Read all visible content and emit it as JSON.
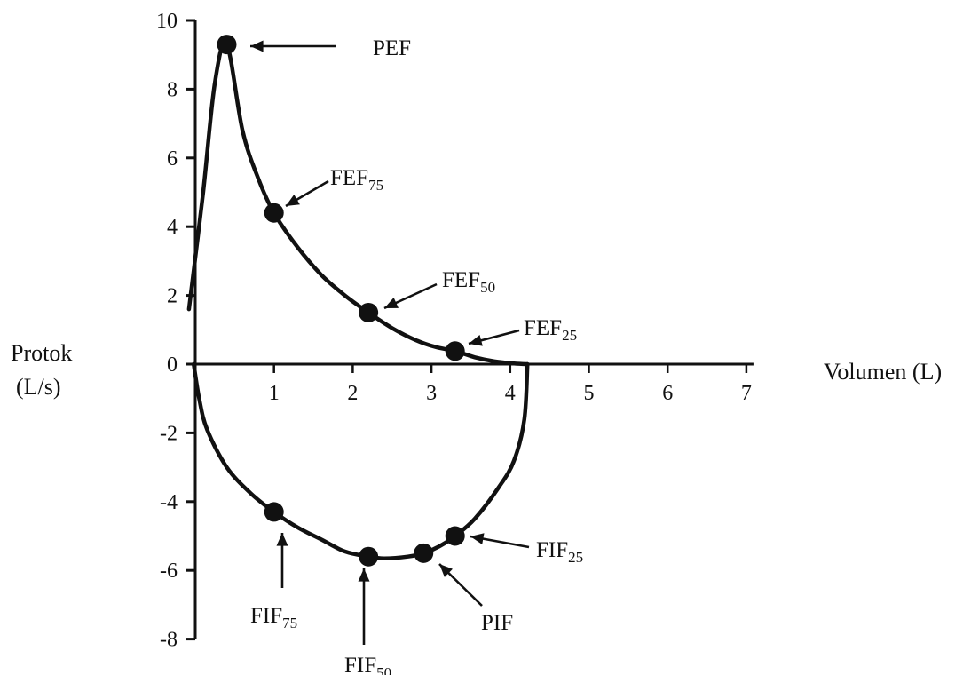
{
  "chart_data": {
    "type": "line",
    "title": "",
    "xlabel": "Volumen (L)",
    "ylabel": [
      "Protok",
      "(L/s)"
    ],
    "xlim": [
      0,
      7
    ],
    "ylim": [
      -8,
      10
    ],
    "x_ticks": [
      1,
      2,
      3,
      4,
      5,
      6,
      7
    ],
    "y_ticks": [
      10,
      8,
      6,
      4,
      2,
      0,
      -2,
      -4,
      -6,
      -8
    ],
    "grid": false,
    "line_color": "#111111",
    "series": [
      {
        "part": "expiration",
        "x": [
          -0.08,
          0.1,
          0.25,
          0.4,
          0.6,
          0.8,
          1.0,
          1.3,
          1.6,
          1.9,
          2.2,
          2.5,
          2.8,
          3.05,
          3.3,
          3.55,
          3.8,
          4.05,
          4.22
        ],
        "y": [
          1.6,
          5.0,
          8.2,
          9.3,
          6.8,
          5.4,
          4.4,
          3.4,
          2.6,
          2.0,
          1.5,
          1.05,
          0.7,
          0.5,
          0.38,
          0.2,
          0.08,
          0.02,
          0.0
        ]
      },
      {
        "part": "inspiration",
        "x": [
          4.22,
          4.18,
          4.05,
          3.85,
          3.55,
          3.3,
          3.1,
          2.9,
          2.7,
          2.4,
          2.2,
          1.9,
          1.6,
          1.3,
          1.0,
          0.7,
          0.4,
          0.15,
          0.05,
          -0.02
        ],
        "y": [
          0.0,
          -1.6,
          -2.8,
          -3.6,
          -4.5,
          -5.0,
          -5.3,
          -5.5,
          -5.6,
          -5.65,
          -5.6,
          -5.45,
          -5.1,
          -4.75,
          -4.3,
          -3.75,
          -3.0,
          -1.9,
          -1.0,
          0.0
        ]
      }
    ],
    "points": [
      {
        "name": "PEF",
        "label": "PEF",
        "sub": "",
        "x": 0.4,
        "y": 9.3
      },
      {
        "name": "FEF75",
        "label": "FEF",
        "sub": "75",
        "x": 1.0,
        "y": 4.4
      },
      {
        "name": "FEF50",
        "label": "FEF",
        "sub": "50",
        "x": 2.2,
        "y": 1.5
      },
      {
        "name": "FEF25",
        "label": "FEF",
        "sub": "25",
        "x": 3.3,
        "y": 0.38
      },
      {
        "name": "FIF25",
        "label": "FIF",
        "sub": "25",
        "x": 3.3,
        "y": -5.0
      },
      {
        "name": "PIF",
        "label": "PIF",
        "sub": "",
        "x": 2.9,
        "y": -5.5
      },
      {
        "name": "FIF50",
        "label": "FIF",
        "sub": "50",
        "x": 2.2,
        "y": -5.6
      },
      {
        "name": "FIF75",
        "label": "FIF",
        "sub": "75",
        "x": 1.0,
        "y": -4.3
      }
    ]
  }
}
